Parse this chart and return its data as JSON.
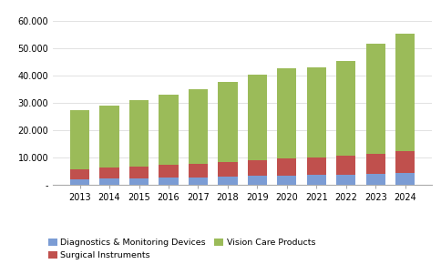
{
  "years": [
    2013,
    2014,
    2015,
    2016,
    2017,
    2018,
    2019,
    2020,
    2021,
    2022,
    2023,
    2024
  ],
  "diagnostics": [
    2000,
    2200,
    2400,
    2600,
    2700,
    2900,
    3200,
    3400,
    3600,
    3800,
    4000,
    4300
  ],
  "surgical": [
    3800,
    4000,
    4300,
    4600,
    5000,
    5500,
    5900,
    6200,
    6500,
    6800,
    7200,
    8000
  ],
  "vision_care": [
    21700,
    23000,
    24500,
    26000,
    27500,
    29500,
    31200,
    33200,
    33000,
    35000,
    40500,
    43200
  ],
  "colors": {
    "diagnostics": "#7b9cd4",
    "surgical": "#c0504d",
    "vision_care": "#9bbb59"
  },
  "yticks": [
    0,
    10000,
    20000,
    30000,
    40000,
    50000,
    60000
  ],
  "ytick_labels": [
    "-",
    "10.000",
    "20.000",
    "30.000",
    "40.000",
    "50.000",
    "60.000"
  ],
  "legend_labels": [
    "Diagnostics & Monitoring Devices",
    "Surgical Instruments",
    "Vision Care Products"
  ],
  "bg_color": "#ffffff",
  "bar_width": 0.65
}
